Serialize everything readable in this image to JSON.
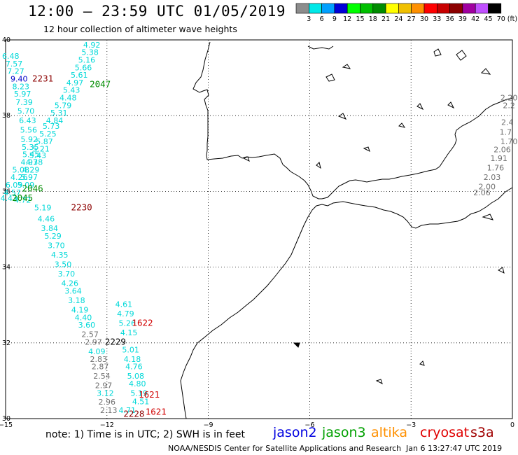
{
  "header": {
    "title": "12:00 – 23:59 UTC 01/05/2019",
    "subtitle": "12 hour collection of altimeter wave heights"
  },
  "legend": {
    "unit": "(ft)",
    "bins": [
      {
        "label": "3",
        "color": "#8c8c8c"
      },
      {
        "label": "6",
        "color": "#00e8e8"
      },
      {
        "label": "9",
        "color": "#00a0ff"
      },
      {
        "label": "12",
        "color": "#0000d8"
      },
      {
        "label": "15",
        "color": "#00ff00"
      },
      {
        "label": "18",
        "color": "#00c000"
      },
      {
        "label": "21",
        "color": "#008c00"
      },
      {
        "label": "24",
        "color": "#ffff00"
      },
      {
        "label": "27",
        "color": "#f0c000"
      },
      {
        "label": "30",
        "color": "#ff9000"
      },
      {
        "label": "33",
        "color": "#ff0000"
      },
      {
        "label": "36",
        "color": "#c80000"
      },
      {
        "label": "39",
        "color": "#8c0000"
      },
      {
        "label": "42",
        "color": "#a000a0"
      },
      {
        "label": "45",
        "color": "#c050ff"
      },
      {
        "label": "70",
        "color": "#000000"
      }
    ]
  },
  "axes": {
    "lon_ticks": [
      "−15",
      "−12",
      "−9",
      "−6",
      "−3",
      "0"
    ],
    "lat_ticks": [
      "40",
      "38",
      "36",
      "34",
      "32",
      "30"
    ]
  },
  "observations": [
    {
      "v": "4.92",
      "lon": -12.45,
      "lat": 39.8,
      "c": "#00d8d8"
    },
    {
      "v": "5.38",
      "lon": -12.5,
      "lat": 39.6,
      "c": "#00d8d8"
    },
    {
      "v": "5.16",
      "lon": -12.6,
      "lat": 39.4,
      "c": "#00d8d8"
    },
    {
      "v": "5.66",
      "lon": -12.7,
      "lat": 39.2,
      "c": "#00d8d8"
    },
    {
      "v": "5.61",
      "lon": -12.82,
      "lat": 39.0,
      "c": "#00d8d8"
    },
    {
      "v": "4.97",
      "lon": -12.95,
      "lat": 38.8,
      "c": "#00d8d8"
    },
    {
      "v": "5.43",
      "lon": -13.05,
      "lat": 38.6,
      "c": "#00d8d8"
    },
    {
      "v": "4.48",
      "lon": -13.15,
      "lat": 38.4,
      "c": "#00d8d8"
    },
    {
      "v": "5.79",
      "lon": -13.3,
      "lat": 38.2,
      "c": "#00d8d8"
    },
    {
      "v": "5.31",
      "lon": -13.42,
      "lat": 38.0,
      "c": "#00d8d8"
    },
    {
      "v": "4.84",
      "lon": -13.55,
      "lat": 37.8,
      "c": "#00d8d8"
    },
    {
      "v": "5.73",
      "lon": -13.65,
      "lat": 37.65,
      "c": "#00d8d8"
    },
    {
      "v": "5.25",
      "lon": -13.75,
      "lat": 37.45,
      "c": "#00d8d8"
    },
    {
      "v": "5.87",
      "lon": -13.85,
      "lat": 37.25,
      "c": "#00d8d8"
    },
    {
      "v": "5.21",
      "lon": -13.95,
      "lat": 37.05,
      "c": "#00d8d8"
    },
    {
      "v": "5.43",
      "lon": -14.05,
      "lat": 36.88,
      "c": "#00d8d8"
    },
    {
      "v": "4.38",
      "lon": -14.15,
      "lat": 36.7,
      "c": "#00d8d8"
    },
    {
      "v": "4.29",
      "lon": -14.25,
      "lat": 36.5,
      "c": "#00d8d8"
    },
    {
      "v": "5.97",
      "lon": -14.3,
      "lat": 36.3,
      "c": "#00d8d8"
    },
    {
      "v": "5.09",
      "lon": -14.4,
      "lat": 36.1,
      "c": "#00d8d8"
    },
    {
      "v": "4.72",
      "lon": -14.5,
      "lat": 35.7,
      "c": "#00d8d8"
    },
    {
      "v": "6.48",
      "lon": -14.85,
      "lat": 39.5,
      "c": "#00d8d8"
    },
    {
      "v": "7.57",
      "lon": -14.75,
      "lat": 39.3,
      "c": "#00d8d8"
    },
    {
      "v": "7.27",
      "lon": -14.7,
      "lat": 39.1,
      "c": "#00d8d8"
    },
    {
      "v": "9.40",
      "lon": -14.6,
      "lat": 38.9,
      "c": "#0000c8"
    },
    {
      "v": "8.23",
      "lon": -14.55,
      "lat": 38.7,
      "c": "#00d8d8"
    },
    {
      "v": "5.97",
      "lon": -14.5,
      "lat": 38.5,
      "c": "#00d8d8"
    },
    {
      "v": "7.39",
      "lon": -14.45,
      "lat": 38.28,
      "c": "#00d8d8"
    },
    {
      "v": "5.70",
      "lon": -14.4,
      "lat": 38.05,
      "c": "#00d8d8"
    },
    {
      "v": "6.43",
      "lon": -14.35,
      "lat": 37.8,
      "c": "#00d8d8"
    },
    {
      "v": "5.56",
      "lon": -14.32,
      "lat": 37.55,
      "c": "#00d8d8"
    },
    {
      "v": "5.92",
      "lon": -14.3,
      "lat": 37.3,
      "c": "#00d8d8"
    },
    {
      "v": "5.35",
      "lon": -14.27,
      "lat": 37.1,
      "c": "#00d8d8"
    },
    {
      "v": "5.45",
      "lon": -14.25,
      "lat": 36.9,
      "c": "#00d8d8"
    },
    {
      "v": "4.97",
      "lon": -14.3,
      "lat": 36.7,
      "c": "#00d8d8"
    },
    {
      "v": "5.08",
      "lon": -14.55,
      "lat": 36.5,
      "c": "#00d8d8"
    },
    {
      "v": "4.26",
      "lon": -14.6,
      "lat": 36.3,
      "c": "#00d8d8"
    },
    {
      "v": "6.09",
      "lon": -14.75,
      "lat": 36.1,
      "c": "#00d8d8"
    },
    {
      "v": "4.57",
      "lon": -14.8,
      "lat": 35.9,
      "c": "#00d8d8"
    },
    {
      "v": "4.43",
      "lon": -14.9,
      "lat": 35.75,
      "c": "#00d8d8"
    },
    {
      "v": "5.19",
      "lon": -13.9,
      "lat": 35.5,
      "c": "#00d8d8"
    },
    {
      "v": "4.46",
      "lon": -13.8,
      "lat": 35.2,
      "c": "#00d8d8"
    },
    {
      "v": "3.84",
      "lon": -13.7,
      "lat": 34.95,
      "c": "#00d8d8"
    },
    {
      "v": "5.29",
      "lon": -13.6,
      "lat": 34.75,
      "c": "#00d8d8"
    },
    {
      "v": "3.70",
      "lon": -13.5,
      "lat": 34.5,
      "c": "#00d8d8"
    },
    {
      "v": "4.35",
      "lon": -13.4,
      "lat": 34.25,
      "c": "#00d8d8"
    },
    {
      "v": "3.50",
      "lon": -13.3,
      "lat": 34.0,
      "c": "#00d8d8"
    },
    {
      "v": "3.70",
      "lon": -13.2,
      "lat": 33.75,
      "c": "#00d8d8"
    },
    {
      "v": "4.26",
      "lon": -13.1,
      "lat": 33.5,
      "c": "#00d8d8"
    },
    {
      "v": "3.64",
      "lon": -13.0,
      "lat": 33.3,
      "c": "#00d8d8"
    },
    {
      "v": "3.18",
      "lon": -12.9,
      "lat": 33.05,
      "c": "#00d8d8"
    },
    {
      "v": "4.19",
      "lon": -12.8,
      "lat": 32.8,
      "c": "#00d8d8"
    },
    {
      "v": "4.40",
      "lon": -12.7,
      "lat": 32.6,
      "c": "#00d8d8"
    },
    {
      "v": "3.60",
      "lon": -12.6,
      "lat": 32.4,
      "c": "#00d8d8"
    },
    {
      "v": "2.57",
      "lon": -12.5,
      "lat": 32.15,
      "c": "#707070"
    },
    {
      "v": "2.97",
      "lon": -12.4,
      "lat": 31.95,
      "c": "#707070"
    },
    {
      "v": "4.09",
      "lon": -12.3,
      "lat": 31.7,
      "c": "#00d8d8"
    },
    {
      "v": "2.83",
      "lon": -12.25,
      "lat": 31.5,
      "c": "#707070"
    },
    {
      "v": "2.87",
      "lon": -12.2,
      "lat": 31.3,
      "c": "#707070"
    },
    {
      "v": "2.54",
      "lon": -12.15,
      "lat": 31.05,
      "c": "#707070"
    },
    {
      "v": "2.97",
      "lon": -12.1,
      "lat": 30.8,
      "c": "#707070"
    },
    {
      "v": "3.12",
      "lon": -12.05,
      "lat": 30.6,
      "c": "#00d8d8"
    },
    {
      "v": "2.96",
      "lon": -12.0,
      "lat": 30.37,
      "c": "#707070"
    },
    {
      "v": "2.13",
      "lon": -11.95,
      "lat": 30.15,
      "c": "#707070"
    },
    {
      "v": "4.61",
      "lon": -11.5,
      "lat": 32.95,
      "c": "#00d8d8"
    },
    {
      "v": "4.79",
      "lon": -11.45,
      "lat": 32.7,
      "c": "#00d8d8"
    },
    {
      "v": "5.26",
      "lon": -11.4,
      "lat": 32.45,
      "c": "#00d8d8"
    },
    {
      "v": "4.15",
      "lon": -11.35,
      "lat": 32.2,
      "c": "#00d8d8"
    },
    {
      "v": "5.01",
      "lon": -11.3,
      "lat": 31.75,
      "c": "#00d8d8"
    },
    {
      "v": "4.18",
      "lon": -11.25,
      "lat": 31.5,
      "c": "#00d8d8"
    },
    {
      "v": "4.76",
      "lon": -11.2,
      "lat": 31.3,
      "c": "#00d8d8"
    },
    {
      "v": "5.08",
      "lon": -11.15,
      "lat": 31.05,
      "c": "#00d8d8"
    },
    {
      "v": "4.80",
      "lon": -11.1,
      "lat": 30.85,
      "c": "#00d8d8"
    },
    {
      "v": "5.19",
      "lon": -11.05,
      "lat": 30.6,
      "c": "#00d8d8"
    },
    {
      "v": "4.51",
      "lon": -11.0,
      "lat": 30.38,
      "c": "#00d8d8"
    },
    {
      "v": "4.71",
      "lon": -11.4,
      "lat": 30.15,
      "c": "#00d8d8"
    },
    {
      "v": "2.20",
      "lon": -0.1,
      "lat": 38.4,
      "c": "#707070"
    },
    {
      "v": "2.2",
      "lon": -0.1,
      "lat": 38.2,
      "c": "#707070"
    },
    {
      "v": "2.4",
      "lon": -0.15,
      "lat": 37.75,
      "c": "#707070"
    },
    {
      "v": "1.7",
      "lon": -0.2,
      "lat": 37.5,
      "c": "#707070"
    },
    {
      "v": "1.70",
      "lon": -0.1,
      "lat": 37.25,
      "c": "#707070"
    },
    {
      "v": "2.06",
      "lon": -0.3,
      "lat": 37.03,
      "c": "#707070"
    },
    {
      "v": "1.91",
      "lon": -0.4,
      "lat": 36.8,
      "c": "#707070"
    },
    {
      "v": "1.76",
      "lon": -0.5,
      "lat": 36.55,
      "c": "#707070"
    },
    {
      "v": "2.03",
      "lon": -0.6,
      "lat": 36.3,
      "c": "#707070"
    },
    {
      "v": "2.00",
      "lon": -0.75,
      "lat": 36.05,
      "c": "#707070"
    },
    {
      "v": "2.06",
      "lon": -0.9,
      "lat": 35.9,
      "c": "#707070"
    }
  ],
  "pass_times": [
    {
      "t": "2231",
      "lon": -13.9,
      "lat": 38.9,
      "c": "#8c0000"
    },
    {
      "t": "2047",
      "lon": -12.2,
      "lat": 38.75,
      "c": "#008c00"
    },
    {
      "t": "2046",
      "lon": -14.2,
      "lat": 36.0,
      "c": "#008c00"
    },
    {
      "t": "2045",
      "lon": -14.5,
      "lat": 35.75,
      "c": "#008c00"
    },
    {
      "t": "2230",
      "lon": -12.75,
      "lat": 35.5,
      "c": "#8c0000"
    },
    {
      "t": "1622",
      "lon": -10.95,
      "lat": 32.45,
      "c": "#d00000"
    },
    {
      "t": "2229",
      "lon": -11.75,
      "lat": 31.95,
      "c": "#000000"
    },
    {
      "t": "1621",
      "lon": -10.75,
      "lat": 30.55,
      "c": "#d00000"
    },
    {
      "t": "2228",
      "lon": -11.2,
      "lat": 30.05,
      "c": "#8c0000"
    },
    {
      "t": "1621",
      "lon": -10.55,
      "lat": 30.1,
      "c": "#d00000"
    }
  ],
  "footer": {
    "note": "note:  1) Time is in UTC;  2) SWH is in feet",
    "credit": "NOAA/NESDIS Center for Satellite Applications and Research",
    "date": "Jan  6 13:27:47 UTC 2019"
  },
  "satellites": [
    {
      "name": "jason2",
      "color": "#0000e0"
    },
    {
      "name": "jason3",
      "color": "#00a000"
    },
    {
      "name": "altika",
      "color": "#ff9000"
    },
    {
      "name": "cryosat",
      "color": "#e00000"
    },
    {
      "name": "s3a",
      "color": "#a00000"
    }
  ]
}
